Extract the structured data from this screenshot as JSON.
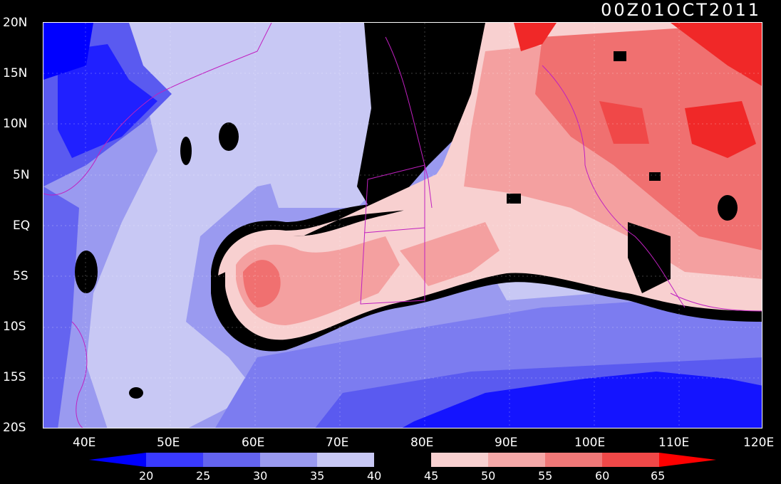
{
  "title": "00Z01OCT2011",
  "y_axis": [
    "20N",
    "15N",
    "10N",
    "5N",
    "EQ",
    "5S",
    "10S",
    "15S",
    "20S"
  ],
  "x_axis": [
    "40E",
    "50E",
    "60E",
    "70E",
    "80E",
    "90E",
    "100E",
    "110E",
    "120E"
  ],
  "colorbar": {
    "labels": [
      "20",
      "25",
      "30",
      "35",
      "40",
      "45",
      "50",
      "55",
      "60",
      "65"
    ],
    "colors": [
      "#0000ff",
      "#3a3aff",
      "#6464f0",
      "#9a9af0",
      "#c8c8f4",
      "#000000",
      "#f8d0d0",
      "#f4a8a8",
      "#f07878",
      "#f04848",
      "#ff0000"
    ]
  },
  "palette": {
    "deep_blue": "#0000ff",
    "mid_blue": "#5a5af0",
    "light_blue": "#9a9af0",
    "pale_blue": "#c8c8f4",
    "black": "#000000",
    "pale_red": "#f8d0d0",
    "light_red": "#f4a0a0",
    "mid_red": "#f07070",
    "deep_red": "#f02828",
    "coast": "#c020c0"
  }
}
